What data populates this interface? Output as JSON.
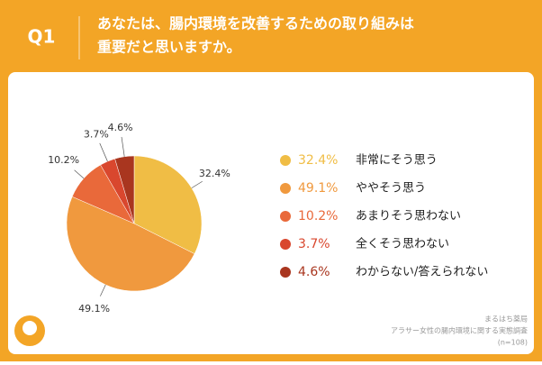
{
  "chart_data": {
    "type": "pie",
    "question": "Q1",
    "title_lines": [
      "あなたは、腸内環境を改善するための取り組みは",
      "重要だと思いますか。"
    ],
    "categories": [
      "非常にそう思う",
      "ややそう思う",
      "あまりそう思わない",
      "全くそう思わない",
      "わからない/答えられない"
    ],
    "values": [
      32.4,
      49.1,
      10.2,
      3.7,
      4.6
    ],
    "value_labels": [
      "32.4%",
      "49.1%",
      "10.2%",
      "3.7%",
      "4.6%"
    ],
    "colors": [
      "#f0bd45",
      "#f0993e",
      "#e9693a",
      "#d9472e",
      "#a9361f"
    ],
    "source_lines": [
      "まるはち薬局",
      "アラサー女性の腸内環境に関する実態調査",
      "(n=108)"
    ]
  }
}
